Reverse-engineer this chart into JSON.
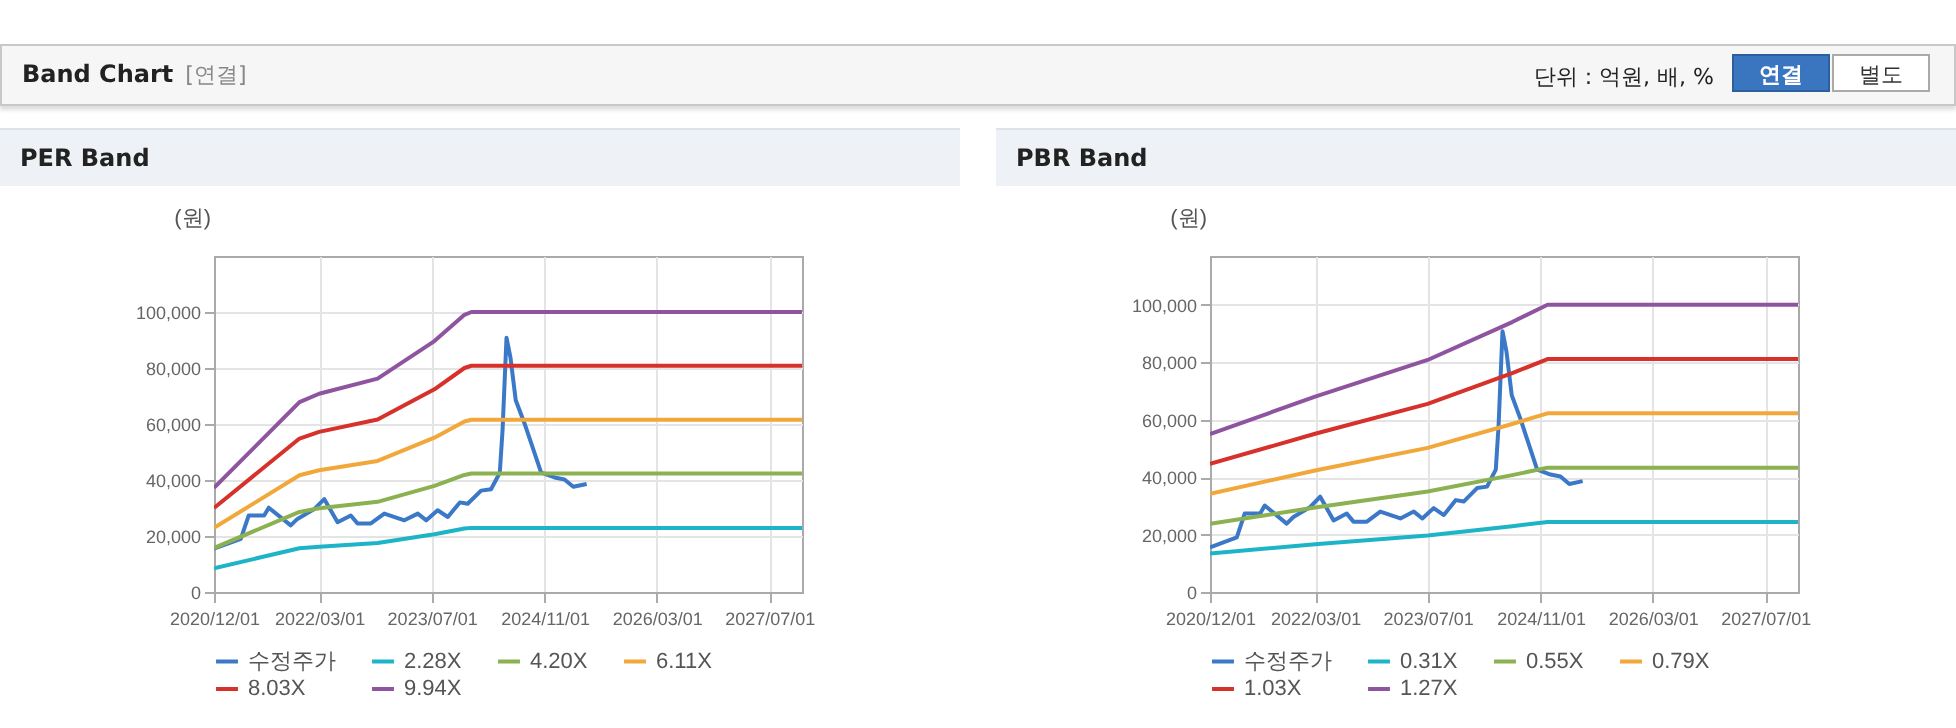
{
  "chart_data": [
    {
      "type": "other",
      "title": "Band Chart",
      "subtitle": "[연결]",
      "annotations": [
        "단위 : 억원, 배, %",
        "연결",
        "별도"
      ]
    },
    {
      "type": "line",
      "title": "PER Band",
      "ylabel": "(원)",
      "xlim": [
        "2020-12-01",
        "2027-11-20"
      ],
      "ylim": [
        0,
        120000
      ],
      "xticks": [
        {
          "value": "2020-12-01",
          "label": "2020/12/01"
        },
        {
          "value": "2022-03-01",
          "label": "2022/03/01"
        },
        {
          "value": "2023-07-01",
          "label": "2023/07/01"
        },
        {
          "value": "2024-11-01",
          "label": "2024/11/01"
        },
        {
          "value": "2026-03-01",
          "label": "2026/03/01"
        },
        {
          "value": "2027-07-01",
          "label": "2027/07/01"
        }
      ],
      "yticks": [
        0,
        {
          "value": 20000,
          "label": "20,000"
        },
        {
          "value": 40000,
          "label": "40,000"
        },
        {
          "value": 60000,
          "label": "60,000"
        },
        {
          "value": 80000,
          "label": "80,000"
        },
        {
          "value": 100000,
          "label": "100,000"
        }
      ],
      "grid": true,
      "legend": "bottom",
      "series": [
        {
          "name": "수정주가",
          "color": "#3b78c8",
          "x": [
            "2020-12-01",
            "2021-03-27",
            "2021-04-30",
            "2021-07-06",
            "2021-07-26",
            "2021-10-29",
            "2021-11-27",
            "2022-02-08",
            "2022-03-23",
            "2022-05-20",
            "2022-07-16",
            "2022-08-14",
            "2022-10-11",
            "2022-12-08",
            "2023-03-05",
            "2023-05-02",
            "2023-06-08",
            "2023-07-27",
            "2023-09-09",
            "2023-10-31",
            "2023-12-04",
            "2024-01-31",
            "2024-03-14",
            "2024-04-21",
            "2024-05-03",
            "2024-05-20",
            "2024-06-06",
            "2024-06-29",
            "2024-08-06",
            "2024-10-17",
            "2024-12-14",
            "2025-01-26",
            "2025-03-05",
            "2025-05-02"
          ],
          "values": [
            15500,
            19000,
            27300,
            27300,
            30100,
            23800,
            26100,
            29600,
            33200,
            24900,
            27300,
            24500,
            24500,
            28000,
            25600,
            28000,
            25600,
            29200,
            26800,
            32000,
            31500,
            36200,
            36700,
            42600,
            57900,
            90800,
            83800,
            68500,
            60200,
            42600,
            40900,
            40200,
            37600,
            38600
          ]
        },
        {
          "name": "2.28X",
          "color": "#1eb4c8",
          "x": [
            "2020-12-01",
            "2021-12-06",
            "2022-03-01",
            "2022-11-09",
            "2023-07-13",
            "2023-11-20",
            "2023-12-20",
            "2027-11-20"
          ],
          "values": [
            8500,
            15600,
            16200,
            17500,
            20600,
            22700,
            22900,
            22900
          ]
        },
        {
          "name": "4.20X",
          "color": "#8cb150",
          "x": [
            "2020-12-01",
            "2021-12-06",
            "2022-03-01",
            "2022-11-09",
            "2023-07-13",
            "2023-11-20",
            "2023-12-20",
            "2027-11-20"
          ],
          "values": [
            15700,
            28600,
            29900,
            32200,
            37900,
            41800,
            42300,
            42300
          ]
        },
        {
          "name": "6.11X",
          "color": "#f2a73a",
          "x": [
            "2020-12-01",
            "2021-12-06",
            "2022-03-01",
            "2022-11-09",
            "2023-07-13",
            "2023-11-20",
            "2023-12-20",
            "2027-11-20"
          ],
          "values": [
            22900,
            41700,
            43500,
            46800,
            55100,
            60900,
            61500,
            61500
          ]
        },
        {
          "name": "8.03X",
          "color": "#d6312a",
          "x": [
            "2020-12-01",
            "2021-12-06",
            "2022-03-01",
            "2022-11-09",
            "2023-07-13",
            "2023-11-20",
            "2023-12-20",
            "2027-11-20"
          ],
          "values": [
            30000,
            54800,
            57200,
            61600,
            72400,
            80000,
            80800,
            80800
          ]
        },
        {
          "name": "9.94X",
          "color": "#8e54a0",
          "x": [
            "2020-12-01",
            "2021-12-06",
            "2022-03-01",
            "2022-11-09",
            "2023-07-13",
            "2023-11-20",
            "2023-12-20",
            "2027-11-20"
          ],
          "values": [
            37200,
            67800,
            70800,
            76200,
            89600,
            99000,
            100000,
            100000
          ]
        }
      ]
    },
    {
      "type": "line",
      "title": "PBR Band",
      "ylabel": "(원)",
      "xlim": [
        "2020-12-01",
        "2027-11-20"
      ],
      "ylim": [
        0,
        117000
      ],
      "xticks": [
        {
          "value": "2020-12-01",
          "label": "2020/12/01"
        },
        {
          "value": "2022-03-01",
          "label": "2022/03/01"
        },
        {
          "value": "2023-07-01",
          "label": "2023/07/01"
        },
        {
          "value": "2024-11-01",
          "label": "2024/11/01"
        },
        {
          "value": "2026-03-01",
          "label": "2026/03/01"
        },
        {
          "value": "2027-07-01",
          "label": "2027/07/01"
        }
      ],
      "yticks": [
        0,
        {
          "value": 20000,
          "label": "20,000"
        },
        {
          "value": 40000,
          "label": "40,000"
        },
        {
          "value": 60000,
          "label": "60,000"
        },
        {
          "value": 80000,
          "label": "80,000"
        },
        {
          "value": 100000,
          "label": "100,000"
        }
      ],
      "grid": true,
      "legend": "bottom",
      "series": [
        {
          "name": "수정주가",
          "color": "#3b78c8",
          "x": [
            "2020-12-01",
            "2021-03-27",
            "2021-04-30",
            "2021-07-06",
            "2021-07-26",
            "2021-10-29",
            "2021-11-27",
            "2022-02-08",
            "2022-03-23",
            "2022-05-20",
            "2022-07-16",
            "2022-08-14",
            "2022-10-11",
            "2022-12-08",
            "2023-03-05",
            "2023-05-02",
            "2023-06-08",
            "2023-07-27",
            "2023-09-09",
            "2023-10-31",
            "2023-12-04",
            "2024-01-31",
            "2024-03-14",
            "2024-04-21",
            "2024-05-03",
            "2024-05-20",
            "2024-06-06",
            "2024-06-29",
            "2024-08-06",
            "2024-10-17",
            "2024-12-14",
            "2025-01-26",
            "2025-03-05",
            "2025-05-02"
          ],
          "values": [
            15500,
            19000,
            27300,
            27300,
            30100,
            23800,
            26100,
            29600,
            33200,
            24900,
            27300,
            24500,
            24500,
            28000,
            25600,
            28000,
            25600,
            29200,
            26800,
            32000,
            31500,
            36200,
            36700,
            42600,
            57900,
            90800,
            83800,
            68500,
            60200,
            42600,
            40900,
            40200,
            37600,
            38600
          ]
        },
        {
          "name": "0.31X",
          "color": "#1eb4c8",
          "x": [
            "2020-12-01",
            "2022-03-01",
            "2023-07-01",
            "2024-07-01",
            "2024-12-01",
            "2027-11-20"
          ],
          "values": [
            13400,
            16600,
            19700,
            22900,
            24400,
            24400
          ]
        },
        {
          "name": "0.55X",
          "color": "#8cb150",
          "x": [
            "2020-12-01",
            "2022-03-01",
            "2023-07-01",
            "2024-07-01",
            "2024-12-01",
            "2027-11-20"
          ],
          "values": [
            23800,
            29400,
            35000,
            40700,
            43300,
            43300
          ]
        },
        {
          "name": "0.79X",
          "color": "#f2a73a",
          "x": [
            "2020-12-01",
            "2022-03-01",
            "2023-07-01",
            "2024-07-01",
            "2024-12-01",
            "2027-11-20"
          ],
          "values": [
            34200,
            42300,
            50200,
            58500,
            62200,
            62200
          ]
        },
        {
          "name": "1.03X",
          "color": "#d6312a",
          "x": [
            "2020-12-01",
            "2022-03-01",
            "2023-07-01",
            "2024-07-01",
            "2024-12-01",
            "2027-11-20"
          ],
          "values": [
            44600,
            55100,
            65500,
            76200,
            81100,
            81100
          ]
        },
        {
          "name": "1.27X",
          "color": "#8e54a0",
          "x": [
            "2020-12-01",
            "2022-03-01",
            "2023-07-01",
            "2024-07-01",
            "2024-12-01",
            "2027-11-20"
          ],
          "values": [
            55000,
            68000,
            80800,
            94000,
            100000,
            100000
          ]
        }
      ]
    }
  ]
}
